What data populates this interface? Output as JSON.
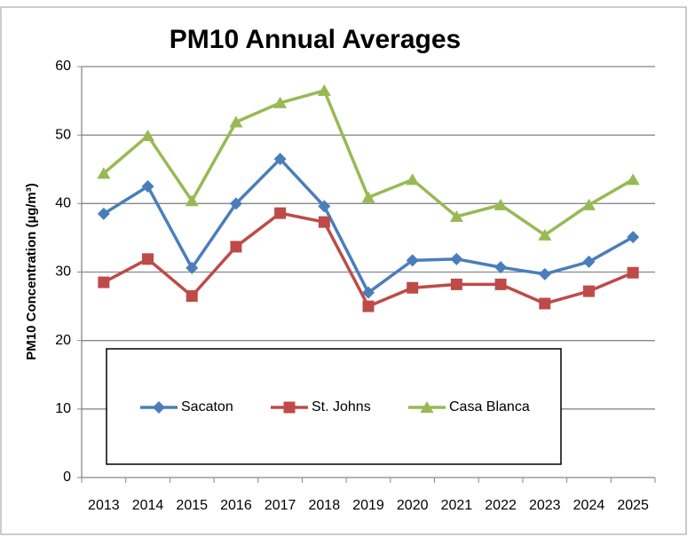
{
  "chart_data": {
    "type": "line",
    "title": "PM10 Annual Averages",
    "y_label": "PM10 Concentration (µg/m³)",
    "categories": [
      "2013",
      "2014",
      "2015",
      "2016",
      "2017",
      "2018",
      "2019",
      "2020",
      "2021",
      "2022",
      "2023",
      "2024",
      "2025"
    ],
    "series": [
      {
        "name": "Sacaton",
        "color": "#4a7ebb",
        "marker": "diamond",
        "values": [
          38.5,
          42.5,
          30.6,
          40,
          46.5,
          39.6,
          27,
          31.7,
          31.9,
          30.7,
          29.7,
          31.5,
          35.1
        ]
      },
      {
        "name": "St. Johns",
        "color": "#be4b48",
        "marker": "square",
        "values": [
          28.5,
          31.9,
          26.5,
          33.7,
          38.6,
          37.3,
          25,
          27.7,
          28.2,
          28.2,
          25.4,
          27.2,
          29.9
        ]
      },
      {
        "name": "Casa Blanca",
        "color": "#98b954",
        "marker": "triangle",
        "values": [
          44.4,
          49.9,
          40.4,
          51.9,
          54.7,
          56.5,
          40.9,
          43.5,
          38.1,
          39.8,
          35.4,
          39.8,
          43.5
        ]
      }
    ],
    "ylim": [
      0,
      60
    ],
    "yticks": [
      0,
      10,
      20,
      30,
      40,
      50,
      60
    ],
    "grid": true,
    "legend": "bottom"
  }
}
